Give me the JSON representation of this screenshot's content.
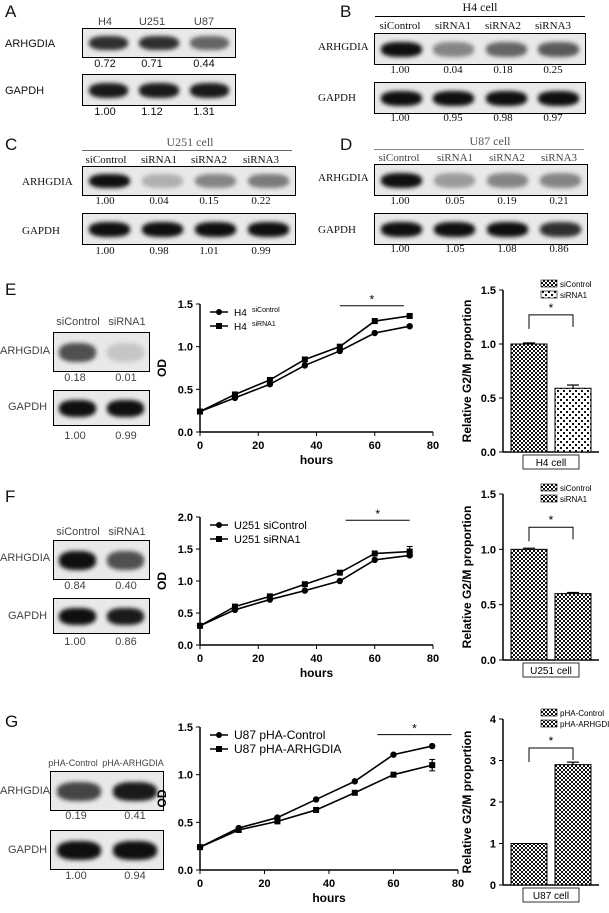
{
  "panels": {
    "A": {
      "letter": "A",
      "lanes": [
        "H4",
        "U251",
        "U87"
      ],
      "protein1": "ARHGDIA",
      "q1": [
        "0.72",
        "0.71",
        "0.44"
      ],
      "protein2": "GAPDH",
      "q2": [
        "1.00",
        "1.12",
        "1.31"
      ],
      "i1": [
        0.85,
        0.85,
        0.6
      ],
      "i2": [
        0.95,
        0.95,
        0.95
      ]
    },
    "B": {
      "letter": "B",
      "title": "H4 cell",
      "lanes": [
        "siControl",
        "siRNA1",
        "siRNA2",
        "siRNA3"
      ],
      "protein1": "ARHGDIA",
      "q1": [
        "1.00",
        "0.04",
        "0.18",
        "0.25"
      ],
      "protein2": "GAPDH",
      "q2": [
        "1.00",
        "0.95",
        "0.98",
        "0.97"
      ],
      "i1": [
        1.0,
        0.45,
        0.6,
        0.65
      ],
      "i2": [
        1,
        1,
        1,
        1
      ]
    },
    "C": {
      "letter": "C",
      "title": "U251 cell",
      "lanes": [
        "siControl",
        "siRNA1",
        "siRNA2",
        "siRNA3"
      ],
      "protein1": "ARHGDIA",
      "q1": [
        "1.00",
        "0.04",
        "0.15",
        "0.22"
      ],
      "protein2": "GAPDH",
      "q2": [
        "1.00",
        "0.98",
        "1.01",
        "0.99"
      ],
      "i1": [
        1.0,
        0.25,
        0.45,
        0.5
      ],
      "i2": [
        1,
        1,
        1,
        1
      ]
    },
    "D": {
      "letter": "D",
      "title": "U87 cell",
      "lanes": [
        "siControl",
        "siRNA1",
        "siRNA2",
        "siRNA3"
      ],
      "protein1": "ARHGDIA",
      "q1": [
        "1.00",
        "0.05",
        "0.19",
        "0.21"
      ],
      "protein2": "GAPDH",
      "q2": [
        "1.00",
        "1.05",
        "1.08",
        "0.86"
      ],
      "i1": [
        1.0,
        0.35,
        0.45,
        0.45
      ],
      "i2": [
        1,
        1,
        1,
        0.85
      ]
    },
    "E": {
      "letter": "E",
      "lanes": [
        "siControl",
        "siRNA1"
      ],
      "protein1": "ARHGDIA",
      "q1": [
        "0.18",
        "0.01"
      ],
      "protein2": "GAPDH",
      "q2": [
        "1.00",
        "0.99"
      ],
      "i1": [
        0.7,
        0.15
      ],
      "i2": [
        1,
        1
      ]
    },
    "F": {
      "letter": "F",
      "lanes": [
        "siControl",
        "siRNA1"
      ],
      "protein1": "ARHGDIA",
      "q1": [
        "0.84",
        "0.40"
      ],
      "protein2": "GAPDH",
      "q2": [
        "1.00",
        "0.86"
      ],
      "i1": [
        1,
        0.7
      ],
      "i2": [
        1,
        0.95
      ]
    },
    "G": {
      "letter": "G",
      "lanes": [
        "pHA-Control",
        "pHA-ARHGDIA"
      ],
      "protein1": "ARHGDIA",
      "q1": [
        "0.19",
        "0.41"
      ],
      "protein2": "GAPDH",
      "q2": [
        "1.00",
        "0.94"
      ],
      "i1": [
        0.75,
        0.95
      ],
      "i2": [
        1,
        1
      ]
    }
  },
  "chart_data": [
    {
      "id": "E-line",
      "type": "line",
      "xlabel": "hours",
      "ylabel": "OD",
      "xlim": [
        0,
        80
      ],
      "ylim": [
        0,
        1.5
      ],
      "xticks": [
        0,
        20,
        40,
        60,
        80
      ],
      "yticks": [
        0.0,
        0.5,
        1.0,
        1.5
      ],
      "ytick_labels": [
        "0.0",
        "0.5",
        "1.0",
        "1.5"
      ],
      "x": [
        0,
        12,
        24,
        36,
        48,
        60,
        72
      ],
      "series": [
        {
          "name": "H4",
          "name_sup": "siControl",
          "marker": "circle",
          "values": [
            0.24,
            0.4,
            0.56,
            0.78,
            0.95,
            1.16,
            1.24
          ]
        },
        {
          "name": "H4",
          "name_sup": "siRNA1",
          "marker": "square",
          "values": [
            0.24,
            0.44,
            0.61,
            0.85,
            1.0,
            1.3,
            1.36
          ]
        }
      ],
      "sig": {
        "x1": 48,
        "x2": 70,
        "y": 1.48,
        "label": "*"
      }
    },
    {
      "id": "E-bar",
      "type": "bar",
      "ylabel": "Relative G2/M proportion",
      "xlabel": "H4 cell",
      "ylim": [
        0,
        1.5
      ],
      "yticks": [
        0.0,
        0.5,
        1.0,
        1.5
      ],
      "ytick_labels": [
        "0.0",
        "0.5",
        "1.0",
        "1.5"
      ],
      "categories": [
        "siControl",
        "siRNA1"
      ],
      "values": [
        1.0,
        0.59
      ],
      "errors": [
        0.01,
        0.03
      ],
      "patterns": [
        "checker",
        "checker-open"
      ],
      "sig": {
        "label": "*",
        "y": 1.27
      }
    },
    {
      "id": "F-line",
      "type": "line",
      "xlabel": "hours",
      "ylabel": "OD",
      "xlim": [
        0,
        80
      ],
      "ylim": [
        0,
        2.0
      ],
      "xticks": [
        0,
        20,
        40,
        60,
        80
      ],
      "yticks": [
        0.0,
        0.5,
        1.0,
        1.5,
        2.0
      ],
      "ytick_labels": [
        "0.0",
        "0.5",
        "1.0",
        "1.5",
        "2.0"
      ],
      "x": [
        0,
        12,
        24,
        36,
        48,
        60,
        72
      ],
      "series": [
        {
          "name": "U251 siControl",
          "marker": "circle",
          "values": [
            0.3,
            0.55,
            0.71,
            0.85,
            1.0,
            1.33,
            1.4
          ]
        },
        {
          "name": "U251 siRNA1",
          "marker": "square",
          "values": [
            0.3,
            0.6,
            0.76,
            0.95,
            1.13,
            1.43,
            1.46
          ]
        }
      ],
      "error_last": 0.08,
      "sig": {
        "x1": 50,
        "x2": 72,
        "y": 1.95,
        "label": "*"
      }
    },
    {
      "id": "F-bar",
      "type": "bar",
      "ylabel": "Relative G2/M proportion",
      "xlabel": "U251 cell",
      "ylim": [
        0,
        1.5
      ],
      "yticks": [
        0.0,
        0.5,
        1.0,
        1.5
      ],
      "ytick_labels": [
        "0.0",
        "0.5",
        "1.0",
        "1.5"
      ],
      "categories": [
        "siControl",
        "siRNA1"
      ],
      "values": [
        1.0,
        0.6
      ],
      "errors": [
        0.01,
        0.01
      ],
      "patterns": [
        "checker",
        "checker"
      ],
      "sig": {
        "label": "*",
        "y": 1.2
      }
    },
    {
      "id": "G-line",
      "type": "line",
      "xlabel": "hours",
      "ylabel": "OD",
      "xlim": [
        0,
        80
      ],
      "ylim": [
        0,
        1.5
      ],
      "xticks": [
        0,
        20,
        40,
        60,
        80
      ],
      "yticks": [
        0.0,
        0.5,
        1.0,
        1.5
      ],
      "ytick_labels": [
        "0.0",
        "0.5",
        "1.0",
        "1.5"
      ],
      "x": [
        0,
        12,
        24,
        36,
        48,
        60,
        72
      ],
      "series": [
        {
          "name": "U87 pHA-Control",
          "marker": "circle",
          "values": [
            0.24,
            0.44,
            0.55,
            0.74,
            0.93,
            1.21,
            1.3
          ]
        },
        {
          "name": "U87 pHA-ARHGDIA",
          "marker": "square",
          "values": [
            0.24,
            0.42,
            0.51,
            0.63,
            0.81,
            1.0,
            1.1
          ]
        }
      ],
      "error_last": 0.06,
      "sig": {
        "x1": 55,
        "x2": 78,
        "y": 1.42,
        "label": "*"
      }
    },
    {
      "id": "G-bar",
      "type": "bar",
      "ylabel": "Relative G2/M proportion",
      "xlabel": "U87 cell",
      "ylim": [
        0,
        4
      ],
      "yticks": [
        0,
        1,
        2,
        3,
        4
      ],
      "ytick_labels": [
        "0",
        "1",
        "2",
        "3",
        "4"
      ],
      "categories": [
        "pHA-Control",
        "pHA-ARHGDIA"
      ],
      "values": [
        1.0,
        2.9
      ],
      "errors": [
        0.0,
        0.06
      ],
      "patterns": [
        "checker",
        "checker"
      ],
      "sig": {
        "label": "*",
        "y": 3.3
      }
    }
  ]
}
